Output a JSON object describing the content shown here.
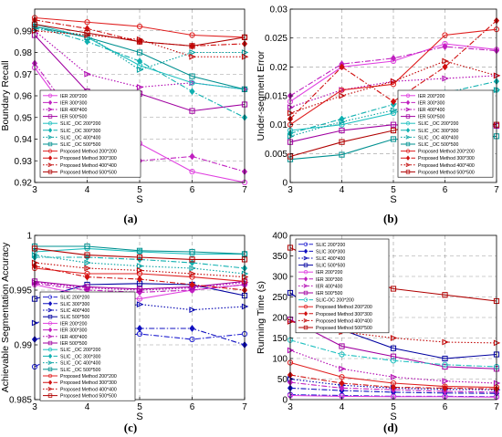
{
  "figure": {
    "title": ""
  },
  "chart_data": [
    {
      "panel": "(a)",
      "type": "line",
      "ylabel": "Boundary Recall",
      "xlabel": "S",
      "x": [
        3,
        4,
        5,
        6,
        7
      ],
      "xlim": [
        3,
        7
      ],
      "ylim": [
        0.92,
        1.0
      ],
      "yticks": [
        0.92,
        0.93,
        0.94,
        0.95,
        0.96,
        0.97,
        0.98,
        0.99
      ],
      "ytick_labels": [
        "0.92",
        "0.93",
        "0.94",
        "0.95",
        "0.96",
        "0.97",
        "0.98",
        "0.99"
      ],
      "grid": true,
      "legend_position": "bottom-left",
      "series": [
        {
          "name": "IER 200*200",
          "color": "#e040e0",
          "dash": "solid",
          "marker": "circle",
          "values": [
            0.973,
            0.94,
            0.938,
            0.925,
            0.92
          ]
        },
        {
          "name": "IER 300*300",
          "color": "#c020c0",
          "dash": "dashdot",
          "marker": "diamond",
          "values": [
            0.975,
            0.942,
            0.93,
            0.932,
            0.925
          ]
        },
        {
          "name": "IER 400*400",
          "color": "#b000b0",
          "dash": "dotted",
          "marker": "triangle",
          "values": [
            0.99,
            0.97,
            0.964,
            0.966,
            0.963
          ]
        },
        {
          "name": "IER 500*500",
          "color": "#a000a0",
          "dash": "solid",
          "marker": "square",
          "values": [
            0.988,
            0.962,
            0.961,
            0.953,
            0.956
          ]
        },
        {
          "name": "SLIC _OC 200*200",
          "color": "#20c0c0",
          "dash": "solid",
          "marker": "circle",
          "values": [
            0.993,
            0.987,
            0.974,
            0.966,
            0.963
          ]
        },
        {
          "name": "SLIC _OC 300*300",
          "color": "#10b0b0",
          "dash": "dashdot",
          "marker": "diamond",
          "values": [
            0.992,
            0.985,
            0.976,
            0.962,
            0.95
          ]
        },
        {
          "name": "SLIC _OC 400*400",
          "color": "#00a0a0",
          "dash": "dotted",
          "marker": "triangle",
          "values": [
            0.991,
            0.988,
            0.972,
            0.98,
            0.98
          ]
        },
        {
          "name": "SLIC _OC 500*500",
          "color": "#009090",
          "dash": "solid",
          "marker": "square",
          "values": [
            0.992,
            0.987,
            0.98,
            0.969,
            0.963
          ]
        },
        {
          "name": "Proposed Method 200*200",
          "color": "#e02020",
          "dash": "solid",
          "marker": "circle",
          "values": [
            0.996,
            0.994,
            0.992,
            0.988,
            0.987
          ]
        },
        {
          "name": "Proposed Method 300*300",
          "color": "#d01010",
          "dash": "dashdot",
          "marker": "diamond",
          "values": [
            0.995,
            0.991,
            0.985,
            0.983,
            0.984
          ]
        },
        {
          "name": "Proposed Method 400*400",
          "color": "#c00000",
          "dash": "dotted",
          "marker": "triangle",
          "values": [
            0.99,
            0.988,
            0.986,
            0.978,
            0.978
          ]
        },
        {
          "name": "Proposed Method 500*500",
          "color": "#b00000",
          "dash": "solid",
          "marker": "square",
          "values": [
            0.993,
            0.989,
            0.985,
            0.983,
            0.987
          ]
        }
      ]
    },
    {
      "panel": "(b)",
      "type": "line",
      "ylabel": "Under-segment Error",
      "xlabel": "S",
      "x": [
        3,
        4,
        5,
        6,
        7
      ],
      "xlim": [
        3,
        7
      ],
      "ylim": [
        0,
        0.03
      ],
      "yticks": [
        0,
        0.005,
        0.01,
        0.015,
        0.02,
        0.025,
        0.03
      ],
      "ytick_labels": [
        "0",
        "0.005",
        "0.01",
        "0.015",
        "0.02",
        "0.025",
        "0.03"
      ],
      "grid": true,
      "legend_position": "bottom-right",
      "series": [
        {
          "name": "IER 200*200",
          "color": "#e040e0",
          "dash": "solid",
          "marker": "circle",
          "values": [
            0.014,
            0.02,
            0.021,
            0.024,
            0.023
          ]
        },
        {
          "name": "IER 300*300",
          "color": "#c020c0",
          "dash": "dashdot",
          "marker": "diamond",
          "values": [
            0.015,
            0.0205,
            0.0215,
            0.0235,
            0.0228
          ]
        },
        {
          "name": "IER 400*400",
          "color": "#b000b0",
          "dash": "dotted",
          "marker": "triangle",
          "values": [
            0.013,
            0.016,
            0.0175,
            0.018,
            0.0185
          ]
        },
        {
          "name": "IER 500*500",
          "color": "#a000a0",
          "dash": "solid",
          "marker": "square",
          "values": [
            0.007,
            0.009,
            0.01,
            0.0095,
            0.0098
          ]
        },
        {
          "name": "SLIC _OC 200*200",
          "color": "#20c0c0",
          "dash": "solid",
          "marker": "circle",
          "values": [
            0.009,
            0.01,
            0.012,
            0.015,
            0.016
          ]
        },
        {
          "name": "SLIC _OC 300*300",
          "color": "#10b0b0",
          "dash": "dashdot",
          "marker": "diamond",
          "values": [
            0.0085,
            0.011,
            0.0135,
            0.0155,
            0.0175
          ]
        },
        {
          "name": "SLIC _OC 400*400",
          "color": "#00a0a0",
          "dash": "dotted",
          "marker": "triangle",
          "values": [
            0.008,
            0.0105,
            0.0125,
            0.015,
            0.016
          ]
        },
        {
          "name": "SLIC _OC 500*500",
          "color": "#009090",
          "dash": "solid",
          "marker": "square",
          "values": [
            0.004,
            0.0048,
            0.0075,
            0.0072,
            0.008
          ]
        },
        {
          "name": "Proposed Method 200*200",
          "color": "#e02020",
          "dash": "solid",
          "marker": "circle",
          "values": [
            0.01,
            0.016,
            0.017,
            0.0255,
            0.0265
          ]
        },
        {
          "name": "Proposed Method 300*300",
          "color": "#d01010",
          "dash": "dashdot",
          "marker": "diamond",
          "values": [
            0.011,
            0.02,
            0.014,
            0.02,
            0.028
          ]
        },
        {
          "name": "Proposed Method 400*400",
          "color": "#c00000",
          "dash": "dotted",
          "marker": "triangle",
          "values": [
            0.012,
            0.015,
            0.0175,
            0.021,
            0.0185
          ]
        },
        {
          "name": "Proposed Method 500*500",
          "color": "#b00000",
          "dash": "solid",
          "marker": "square",
          "values": [
            0.0045,
            0.007,
            0.009,
            0.011,
            0.01
          ]
        }
      ]
    },
    {
      "panel": "(c)",
      "type": "line",
      "ylabel": "Achievable Segmentation Accuracy",
      "xlabel": "S",
      "x": [
        3,
        4,
        5,
        6,
        7
      ],
      "xlim": [
        3,
        7
      ],
      "ylim": [
        0.985,
        1.0
      ],
      "yticks": [
        0.985,
        0.99,
        0.995,
        1.0
      ],
      "ytick_labels": [
        "0.985",
        "0.99",
        "0.995",
        "1"
      ],
      "grid": true,
      "legend_position": "bottom-left",
      "series": [
        {
          "name": "SLIC 200*200",
          "color": "#2020d0",
          "dash": "dashdot",
          "marker": "circle",
          "values": [
            0.988,
            0.9905,
            0.991,
            0.9905,
            0.991
          ]
        },
        {
          "name": "SLIC 300*300",
          "color": "#1010c0",
          "dash": "dashdot",
          "marker": "diamond",
          "values": [
            0.9905,
            0.9915,
            0.9915,
            0.9915,
            0.99
          ]
        },
        {
          "name": "SLIC 400*400",
          "color": "#0000b0",
          "dash": "dotted",
          "marker": "triangle",
          "values": [
            0.992,
            0.993,
            0.9937,
            0.9932,
            0.9935
          ]
        },
        {
          "name": "SLIC 500*500",
          "color": "#0000a0",
          "dash": "solid",
          "marker": "square",
          "values": [
            0.9942,
            0.9955,
            0.9956,
            0.9955,
            0.9945
          ]
        },
        {
          "name": "IER 200*200",
          "color": "#e040e0",
          "dash": "solid",
          "marker": "circle",
          "values": [
            0.9955,
            0.9945,
            0.9942,
            0.995,
            0.9955
          ]
        },
        {
          "name": "IER 300*300",
          "color": "#c020c0",
          "dash": "dashdot",
          "marker": "diamond",
          "values": [
            0.9956,
            0.995,
            0.9948,
            0.995,
            0.9955
          ]
        },
        {
          "name": "IER 400*400",
          "color": "#b000b0",
          "dash": "dotted",
          "marker": "triangle",
          "values": [
            0.9957,
            0.9952,
            0.995,
            0.9952,
            0.9957
          ]
        },
        {
          "name": "IER 500*500",
          "color": "#a000a0",
          "dash": "solid",
          "marker": "square",
          "values": [
            0.9958,
            0.9953,
            0.9951,
            0.9953,
            0.9958
          ]
        },
        {
          "name": "SLIC _OC 200*200",
          "color": "#20c0c0",
          "dash": "solid",
          "marker": "circle",
          "values": [
            0.9985,
            0.9988,
            0.9985,
            0.9983,
            0.9983
          ]
        },
        {
          "name": "SLIC _OC 300*300",
          "color": "#10b0b0",
          "dash": "dashdot",
          "marker": "diamond",
          "values": [
            0.998,
            0.998,
            0.9978,
            0.9975,
            0.997
          ]
        },
        {
          "name": "SLIC _OC 400*400",
          "color": "#00a0a0",
          "dash": "dotted",
          "marker": "triangle",
          "values": [
            0.9982,
            0.9975,
            0.9972,
            0.997,
            0.9965
          ]
        },
        {
          "name": "SLIC _OC 500*500",
          "color": "#009090",
          "dash": "solid",
          "marker": "square",
          "values": [
            0.999,
            0.999,
            0.9986,
            0.9985,
            0.9983
          ]
        },
        {
          "name": "Proposed Method 200*200",
          "color": "#e02020",
          "dash": "solid",
          "marker": "circle",
          "values": [
            0.997,
            0.9965,
            0.9965,
            0.9962,
            0.9958
          ]
        },
        {
          "name": "Proposed Method 300*300",
          "color": "#d01010",
          "dash": "dashdot",
          "marker": "diamond",
          "values": [
            0.9972,
            0.9962,
            0.996,
            0.9955,
            0.995
          ]
        },
        {
          "name": "Proposed Method 400*400",
          "color": "#c00000",
          "dash": "dotted",
          "marker": "triangle",
          "values": [
            0.9975,
            0.997,
            0.9968,
            0.9965,
            0.9962
          ]
        },
        {
          "name": "Proposed Method 500*500",
          "color": "#b00000",
          "dash": "solid",
          "marker": "square",
          "values": [
            0.9988,
            0.9982,
            0.998,
            0.9978,
            0.9978
          ]
        }
      ]
    },
    {
      "panel": "(d)",
      "type": "line",
      "ylabel": "Running Time (s)",
      "xlabel": "S",
      "x": [
        3,
        4,
        5,
        6,
        7
      ],
      "xlim": [
        3,
        7
      ],
      "ylim": [
        0,
        400
      ],
      "yticks": [
        0,
        50,
        100,
        150,
        200,
        250,
        300,
        350,
        400
      ],
      "ytick_labels": [
        "0",
        "50",
        "100",
        "150",
        "200",
        "250",
        "300",
        "350",
        "400"
      ],
      "grid": true,
      "legend_position": "top-left",
      "series": [
        {
          "name": "SLIC 200*200",
          "color": "#2020d0",
          "dash": "dashdot",
          "marker": "circle",
          "values": [
            12,
            10,
            8,
            8,
            7
          ]
        },
        {
          "name": "SLIC 300*300",
          "color": "#1010c0",
          "dash": "dashdot",
          "marker": "diamond",
          "values": [
            28,
            22,
            18,
            16,
            15
          ]
        },
        {
          "name": "SLIC 400*400",
          "color": "#0000b0",
          "dash": "dotted",
          "marker": "triangle",
          "values": [
            50,
            35,
            28,
            25,
            24
          ]
        },
        {
          "name": "SLIC 500*500",
          "color": "#0000a0",
          "dash": "solid",
          "marker": "square",
          "values": [
            260,
            170,
            125,
            100,
            110
          ]
        },
        {
          "name": "IER 200*200",
          "color": "#e040e0",
          "dash": "solid",
          "marker": "circle",
          "values": [
            10,
            8,
            7,
            7,
            6
          ]
        },
        {
          "name": "IER 300*300",
          "color": "#c020c0",
          "dash": "dashdot",
          "marker": "diamond",
          "values": [
            42,
            28,
            24,
            20,
            18
          ]
        },
        {
          "name": "IER 400*400",
          "color": "#b000b0",
          "dash": "dotted",
          "marker": "triangle",
          "values": [
            120,
            75,
            55,
            45,
            40
          ]
        },
        {
          "name": "IER 500*500",
          "color": "#a000a0",
          "dash": "solid",
          "marker": "square",
          "values": [
            195,
            130,
            105,
            80,
            75
          ]
        },
        {
          "name": "SLIC-OC 200*200",
          "color": "#20c0c0",
          "dash": "dashdot",
          "marker": "circle",
          "values": [
            145,
            110,
            95,
            85,
            80
          ]
        },
        {
          "name": "Proposed Method 200*200",
          "color": "#e02020",
          "dash": "solid",
          "marker": "circle",
          "values": [
            90,
            55,
            40,
            32,
            30
          ]
        },
        {
          "name": "Proposed Method 300*300",
          "color": "#d01010",
          "dash": "dashdot",
          "marker": "diamond",
          "values": [
            60,
            40,
            30,
            28,
            26
          ]
        },
        {
          "name": "Proposed Method 400*400",
          "color": "#c00000",
          "dash": "dotted",
          "marker": "triangle",
          "values": [
            190,
            165,
            150,
            140,
            138
          ]
        },
        {
          "name": "Proposed Method 500*500",
          "color": "#b00000",
          "dash": "solid",
          "marker": "square",
          "values": [
            370,
            312,
            270,
            255,
            240
          ]
        }
      ]
    }
  ]
}
